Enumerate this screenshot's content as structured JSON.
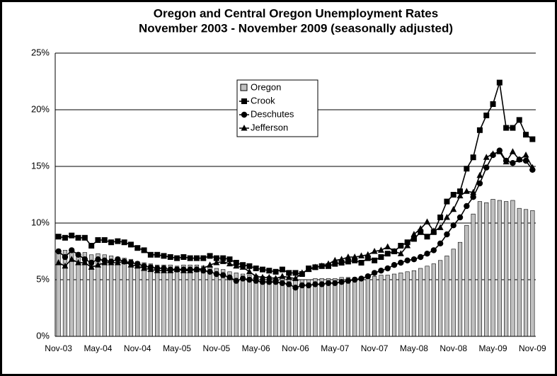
{
  "chart_data": {
    "type": "bar-line",
    "title": "Oregon and Central Oregon Unemployment Rates",
    "subtitle": "November 2003 - November 2009 (seasonally adjusted)",
    "categories": [
      "Nov-03",
      null,
      null,
      null,
      null,
      null,
      "May-04",
      null,
      null,
      null,
      null,
      null,
      "Nov-04",
      null,
      null,
      null,
      null,
      null,
      "May-05",
      null,
      null,
      null,
      null,
      null,
      "Nov-05",
      null,
      null,
      null,
      null,
      null,
      "May-06",
      null,
      null,
      null,
      null,
      null,
      "Nov-06",
      null,
      null,
      null,
      null,
      null,
      "May-07",
      null,
      null,
      null,
      null,
      null,
      "Nov-07",
      null,
      null,
      null,
      null,
      null,
      "May-08",
      null,
      null,
      null,
      null,
      null,
      "Nov-08",
      null,
      null,
      null,
      null,
      null,
      "May-09",
      null,
      null,
      null,
      null,
      null,
      "Nov-09"
    ],
    "ylim": [
      0,
      25
    ],
    "yticks": [
      {
        "value": 0,
        "label": "0%"
      },
      {
        "value": 5,
        "label": "5%"
      },
      {
        "value": 10,
        "label": "10%"
      },
      {
        "value": 15,
        "label": "15%"
      },
      {
        "value": 20,
        "label": "20%"
      },
      {
        "value": 25,
        "label": "25%"
      }
    ],
    "grid": true,
    "series": [
      {
        "name": "Oregon",
        "kind": "bar",
        "color": "#c0c0c0",
        "values": [
          7.7,
          7.6,
          7.6,
          7.4,
          7.4,
          7.2,
          7.3,
          7.2,
          7.1,
          7.0,
          6.9,
          6.8,
          6.6,
          6.5,
          6.4,
          6.3,
          6.3,
          6.3,
          6.2,
          6.3,
          6.3,
          6.3,
          6.2,
          6.1,
          6.0,
          5.9,
          5.7,
          5.6,
          5.5,
          5.4,
          5.4,
          5.3,
          5.3,
          5.2,
          5.2,
          5.1,
          5.1,
          5.0,
          5.0,
          5.1,
          5.1,
          5.1,
          5.1,
          5.2,
          5.2,
          5.2,
          5.2,
          5.3,
          5.3,
          5.4,
          5.4,
          5.5,
          5.6,
          5.7,
          5.8,
          6.0,
          6.2,
          6.4,
          6.7,
          7.1,
          7.7,
          8.3,
          9.8,
          10.8,
          11.9,
          11.8,
          12.1,
          12.0,
          11.9,
          12.0,
          11.3,
          11.2,
          11.1
        ]
      },
      {
        "name": "Crook",
        "kind": "line",
        "marker": "square",
        "color": "#000000",
        "values": [
          8.8,
          8.7,
          8.9,
          8.7,
          8.7,
          8.0,
          8.5,
          8.5,
          8.3,
          8.4,
          8.3,
          8.1,
          7.8,
          7.6,
          7.2,
          7.2,
          7.1,
          7.0,
          6.9,
          7.0,
          6.9,
          6.9,
          6.9,
          7.1,
          6.9,
          6.9,
          6.8,
          6.5,
          6.3,
          6.2,
          6.0,
          5.9,
          5.8,
          5.7,
          5.9,
          5.6,
          5.6,
          5.5,
          6.0,
          6.1,
          6.2,
          6.2,
          6.4,
          6.5,
          6.6,
          6.7,
          6.5,
          6.9,
          6.7,
          7.0,
          7.3,
          7.5,
          8.0,
          8.3,
          8.6,
          9.2,
          8.8,
          9.2,
          10.5,
          11.9,
          12.5,
          12.8,
          14.8,
          15.8,
          18.2,
          19.5,
          20.5,
          22.4,
          18.4,
          18.4,
          19.1,
          17.8,
          17.4
        ]
      },
      {
        "name": "Deschutes",
        "kind": "line",
        "marker": "circle",
        "color": "#000000",
        "values": [
          7.5,
          7.0,
          7.6,
          7.2,
          6.8,
          6.5,
          6.8,
          6.7,
          6.6,
          6.8,
          6.6,
          6.5,
          6.4,
          6.2,
          6.1,
          6.0,
          6.0,
          5.9,
          5.9,
          5.9,
          5.9,
          5.9,
          5.8,
          5.7,
          5.5,
          5.4,
          5.2,
          4.9,
          5.1,
          5.0,
          4.9,
          4.8,
          4.8,
          4.8,
          4.7,
          4.6,
          4.3,
          4.5,
          4.5,
          4.6,
          4.6,
          4.7,
          4.7,
          4.8,
          4.9,
          5.0,
          5.1,
          5.3,
          5.6,
          5.8,
          6.0,
          6.3,
          6.5,
          6.7,
          6.8,
          7.0,
          7.3,
          7.6,
          8.2,
          9.0,
          9.8,
          10.5,
          11.5,
          12.3,
          13.5,
          14.9,
          16.0,
          16.4,
          15.5,
          15.3,
          15.6,
          15.5,
          14.7
        ]
      },
      {
        "name": "Jefferson",
        "kind": "line",
        "marker": "triangle",
        "color": "#000000",
        "values": [
          6.5,
          6.2,
          6.8,
          6.5,
          6.5,
          6.1,
          6.3,
          6.5,
          6.5,
          6.5,
          6.6,
          6.3,
          6.2,
          6.0,
          5.9,
          5.8,
          5.8,
          5.8,
          5.9,
          5.8,
          5.8,
          5.9,
          6.0,
          6.3,
          6.5,
          6.6,
          6.4,
          6.2,
          6.1,
          5.7,
          5.3,
          5.2,
          5.2,
          5.1,
          5.3,
          5.2,
          5.1,
          5.6,
          5.9,
          6.1,
          6.2,
          6.4,
          6.7,
          6.8,
          7.0,
          7.0,
          7.1,
          7.2,
          7.5,
          7.6,
          7.9,
          7.5,
          7.3,
          8.0,
          9.0,
          9.5,
          10.1,
          9.3,
          9.6,
          10.5,
          11.2,
          12.4,
          12.8,
          12.7,
          14.2,
          15.8,
          16.1,
          16.3,
          15.4,
          16.3,
          15.6,
          16.0,
          14.9
        ]
      }
    ]
  }
}
